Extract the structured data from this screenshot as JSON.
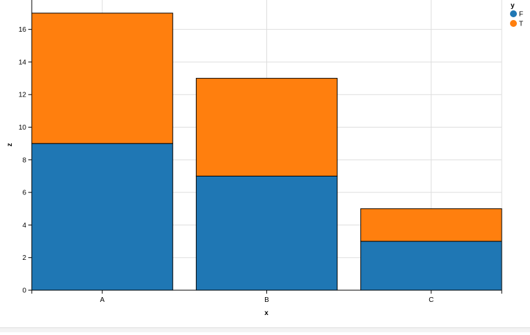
{
  "chart_data": {
    "type": "bar",
    "stacked": true,
    "categories": [
      "A",
      "B",
      "C"
    ],
    "series": [
      {
        "name": "F",
        "values": [
          9,
          7,
          3
        ],
        "color": "#1f77b4"
      },
      {
        "name": "T",
        "values": [
          8,
          6,
          2
        ],
        "color": "#ff7f0e"
      }
    ],
    "xlabel": "x",
    "ylabel": "z",
    "ylim": [
      0,
      17
    ],
    "yticks": [
      0,
      2,
      4,
      6,
      8,
      10,
      12,
      14,
      16
    ],
    "legend_title": "y",
    "legend_position": "top-right",
    "grid": true
  }
}
